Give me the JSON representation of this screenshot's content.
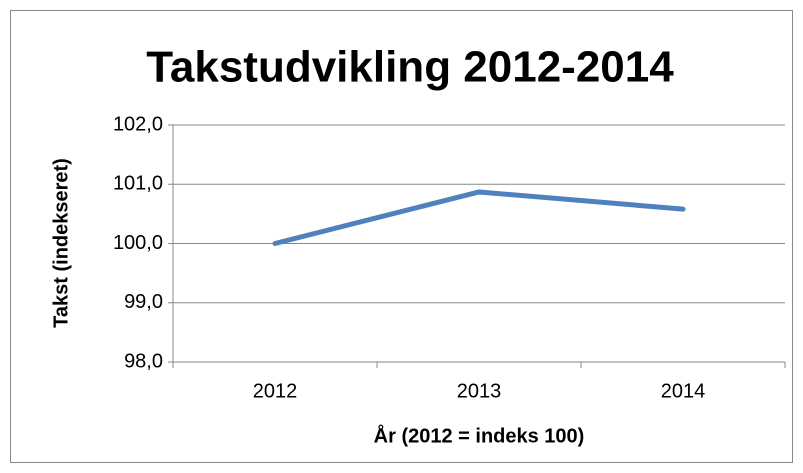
{
  "chart_data": {
    "type": "line",
    "title": "Takstudvikling 2012-2014",
    "x_label": "År (2012 = indeks 100)",
    "y_label": "Takst (indekseret)",
    "categories": [
      "2012",
      "2013",
      "2014"
    ],
    "series": [
      {
        "name": "Takst",
        "color": "#4f81bd",
        "values": [
          100.0,
          100.87,
          100.58
        ]
      }
    ],
    "ylim": [
      98,
      102
    ],
    "yticks": [
      {
        "value": 98,
        "label": "98,0"
      },
      {
        "value": 99,
        "label": "99,0"
      },
      {
        "value": 100,
        "label": "100,0"
      },
      {
        "value": 101,
        "label": "101,0"
      },
      {
        "value": 102,
        "label": "102,0"
      }
    ],
    "grid": true,
    "legend": false
  }
}
